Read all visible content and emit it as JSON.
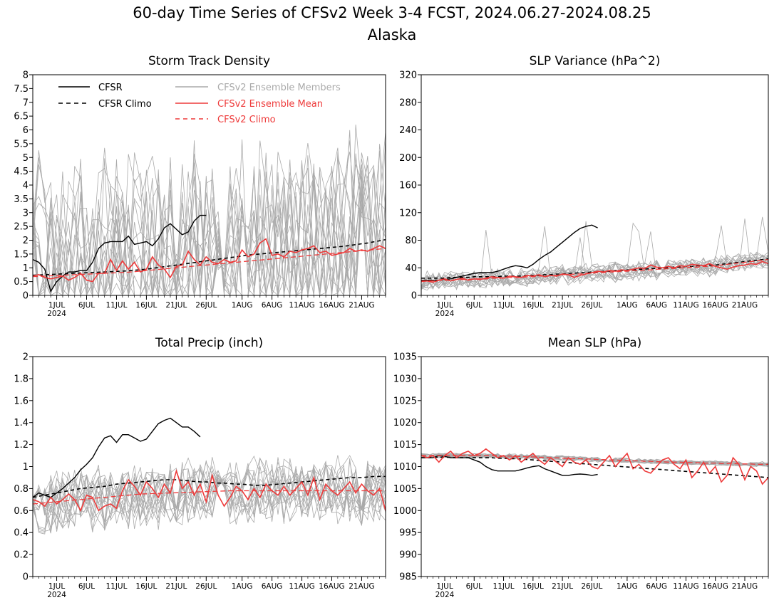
{
  "title": "60-day Time Series of CFSv2 Week 3-4 FCST, 2024.06.27-2024.08.25",
  "subtitle": "Alaska",
  "colors": {
    "cfsr": "#000000",
    "cfsv2_members": "#aaaaaa",
    "cfsv2_mean": "#ee3a3a",
    "cfsv2_climo": "#ee3a3a",
    "cfsr_climo": "#000000"
  },
  "legend": {
    "cfsr": "CFSR",
    "cfsr_climo": "CFSR Climo",
    "members": "CFSv2 Ensemble Members",
    "mean": "CFSv2 Ensemble Mean",
    "cfsv2_climo": "CFSv2 Climo"
  },
  "x_ticks": {
    "day_index": [
      4,
      9,
      14,
      19,
      24,
      29,
      35,
      40,
      45,
      50,
      55
    ],
    "labels": [
      "1JUL",
      "6JUL",
      "11JUL",
      "16JUL",
      "21JUL",
      "26JUL",
      "1AUG",
      "6AUG",
      "11AUG",
      "16AUG",
      "21AUG"
    ],
    "year_label": "2024"
  },
  "chart_data": [
    {
      "type": "line",
      "title": "Storm Track Density",
      "ylim": [
        0,
        8
      ],
      "yticks": [
        "0",
        "0.5",
        "1",
        "1.5",
        "2",
        "2.5",
        "3",
        "3.5",
        "4",
        "4.5",
        "5",
        "5.5",
        "6",
        "6.5",
        "7",
        "7.5",
        "8"
      ],
      "x": "days 0-59 (2024-06-27 to 2024-08-25)",
      "series": [
        {
          "name": "CFSR",
          "values": [
            1.3,
            1.2,
            0.95,
            0.15,
            0.5,
            0.7,
            0.85,
            0.85,
            0.9,
            0.9,
            1.2,
            1.7,
            1.9,
            1.95,
            1.95,
            1.95,
            2.15,
            1.85,
            1.9,
            1.95,
            1.8,
            2.05,
            2.45,
            2.6,
            2.4,
            2.2,
            2.3,
            2.7,
            2.9,
            2.9
          ]
        },
        {
          "name": "CFSR Climo",
          "values": [
            0.73,
            0.74,
            0.75,
            0.76,
            0.77,
            0.78,
            0.79,
            0.8,
            0.81,
            0.82,
            0.83,
            0.84,
            0.85,
            0.86,
            0.87,
            0.88,
            0.89,
            0.91,
            0.93,
            0.95,
            0.98,
            1.01,
            1.04,
            1.07,
            1.1,
            1.13,
            1.16,
            1.19,
            1.22,
            1.25,
            1.28,
            1.31,
            1.34,
            1.37,
            1.4,
            1.43,
            1.46,
            1.48,
            1.5,
            1.52,
            1.54,
            1.56,
            1.58,
            1.6,
            1.62,
            1.64,
            1.66,
            1.68,
            1.7,
            1.72,
            1.74,
            1.76,
            1.78,
            1.81,
            1.84,
            1.87,
            1.9,
            1.94,
            1.98,
            2.02
          ]
        },
        {
          "name": "CFSv2 Ensemble Mean",
          "values": [
            0.7,
            0.75,
            0.65,
            0.6,
            0.65,
            0.7,
            0.55,
            0.65,
            0.8,
            0.55,
            0.5,
            0.8,
            0.8,
            1.3,
            0.9,
            1.25,
            0.95,
            1.2,
            0.85,
            0.95,
            1.4,
            1.1,
            0.95,
            0.65,
            1.05,
            1.1,
            1.6,
            1.3,
            1.1,
            1.4,
            1.2,
            1.15,
            1.3,
            1.2,
            1.25,
            1.65,
            1.4,
            1.5,
            1.9,
            2.05,
            1.45,
            1.5,
            1.4,
            1.6,
            1.55,
            1.65,
            1.7,
            1.8,
            1.55,
            1.6,
            1.45,
            1.5,
            1.55,
            1.7,
            1.6,
            1.65,
            1.6,
            1.7,
            1.8,
            1.7
          ]
        },
        {
          "name": "CFSv2 Climo",
          "values": [
            0.68,
            0.69,
            0.7,
            0.71,
            0.72,
            0.73,
            0.74,
            0.75,
            0.76,
            0.77,
            0.78,
            0.79,
            0.8,
            0.81,
            0.82,
            0.83,
            0.84,
            0.86,
            0.88,
            0.9,
            0.92,
            0.94,
            0.96,
            0.98,
            1.0,
            1.02,
            1.04,
            1.06,
            1.08,
            1.1,
            1.12,
            1.14,
            1.16,
            1.18,
            1.2,
            1.22,
            1.24,
            1.26,
            1.28,
            1.3,
            1.32,
            1.34,
            1.36,
            1.38,
            1.4,
            1.42,
            1.44,
            1.46,
            1.48,
            1.5,
            1.52,
            1.54,
            1.56,
            1.58,
            1.6,
            1.62,
            1.64,
            1.66,
            1.68,
            1.7
          ]
        }
      ]
    },
    {
      "type": "line",
      "title": "SLP Variance (hPa^2)",
      "ylim": [
        0,
        320
      ],
      "yticks": [
        "0",
        "40",
        "80",
        "120",
        "160",
        "200",
        "240",
        "280",
        "320"
      ],
      "x": "days 0-59 (2024-06-27 to 2024-08-25)",
      "series": [
        {
          "name": "CFSR",
          "values": [
            22,
            22,
            22,
            22,
            23,
            24,
            26,
            28,
            30,
            32,
            33,
            33,
            33,
            35,
            38,
            41,
            43,
            42,
            40,
            45,
            52,
            58,
            63,
            70,
            77,
            84,
            91,
            97,
            100,
            102,
            98
          ]
        },
        {
          "name": "CFSR Climo",
          "values": [
            25,
            25,
            25,
            25,
            25,
            26,
            26,
            26,
            26,
            27,
            27,
            27,
            27,
            27,
            28,
            28,
            28,
            28,
            29,
            29,
            29,
            30,
            30,
            31,
            31,
            32,
            32,
            33,
            33,
            34,
            34,
            35,
            35,
            36,
            36,
            37,
            37,
            38,
            38,
            39,
            39,
            40,
            40,
            41,
            41,
            42,
            42,
            43,
            43,
            44,
            44,
            45,
            46,
            47,
            48,
            49,
            50,
            51,
            52,
            53
          ]
        },
        {
          "name": "CFSv2 Ensemble Mean",
          "values": [
            20,
            21,
            19,
            22,
            24,
            21,
            23,
            25,
            22,
            24,
            23,
            25,
            27,
            26,
            25,
            28,
            27,
            26,
            29,
            28,
            30,
            27,
            29,
            28,
            31,
            30,
            26,
            29,
            31,
            33,
            35,
            34,
            36,
            35,
            37,
            36,
            38,
            40,
            39,
            44,
            41,
            40,
            42,
            40,
            43,
            42,
            45,
            44,
            43,
            46,
            42,
            40,
            38,
            41,
            43,
            44,
            46,
            45,
            49,
            46
          ]
        },
        {
          "name": "CFSv2 Climo",
          "values": [
            21,
            21,
            21,
            22,
            22,
            22,
            23,
            23,
            23,
            24,
            24,
            24,
            25,
            25,
            25,
            26,
            26,
            26,
            27,
            27,
            28,
            28,
            29,
            29,
            30,
            30,
            31,
            31,
            32,
            32,
            33,
            33,
            34,
            34,
            35,
            35,
            36,
            36,
            37,
            37,
            38,
            38,
            39,
            39,
            40,
            40,
            41,
            41,
            42,
            42,
            43,
            44,
            45,
            46,
            47,
            48,
            49,
            50,
            51,
            52
          ]
        }
      ]
    },
    {
      "type": "line",
      "title": "Total Precip (inch)",
      "ylim": [
        0,
        2
      ],
      "yticks": [
        "0",
        "0.2",
        "0.4",
        "0.6",
        "0.8",
        "1",
        "1.2",
        "1.4",
        "1.6",
        "1.8",
        "2"
      ],
      "x": "days 0-59 (2024-06-27 to 2024-08-25)",
      "series": [
        {
          "name": "CFSR",
          "values": [
            0.72,
            0.76,
            0.74,
            0.72,
            0.76,
            0.8,
            0.85,
            0.9,
            0.97,
            1.02,
            1.08,
            1.18,
            1.26,
            1.28,
            1.22,
            1.29,
            1.29,
            1.26,
            1.23,
            1.25,
            1.32,
            1.39,
            1.42,
            1.44,
            1.4,
            1.36,
            1.36,
            1.32,
            1.27
          ]
        },
        {
          "name": "CFSR Climo",
          "values": [
            0.72,
            0.73,
            0.74,
            0.75,
            0.76,
            0.77,
            0.78,
            0.79,
            0.8,
            0.805,
            0.81,
            0.815,
            0.82,
            0.83,
            0.84,
            0.845,
            0.85,
            0.855,
            0.86,
            0.865,
            0.87,
            0.875,
            0.88,
            0.88,
            0.88,
            0.875,
            0.87,
            0.865,
            0.86,
            0.86,
            0.855,
            0.85,
            0.85,
            0.845,
            0.84,
            0.84,
            0.835,
            0.83,
            0.83,
            0.83,
            0.835,
            0.84,
            0.845,
            0.85,
            0.855,
            0.86,
            0.865,
            0.87,
            0.875,
            0.88,
            0.885,
            0.89,
            0.895,
            0.9,
            0.9,
            0.9,
            0.905,
            0.91,
            0.91,
            0.91
          ]
        },
        {
          "name": "CFSv2 Ensemble Mean",
          "values": [
            0.7,
            0.68,
            0.64,
            0.72,
            0.66,
            0.7,
            0.75,
            0.7,
            0.6,
            0.74,
            0.72,
            0.6,
            0.64,
            0.66,
            0.62,
            0.78,
            0.88,
            0.82,
            0.74,
            0.86,
            0.8,
            0.72,
            0.84,
            0.76,
            0.96,
            0.8,
            0.86,
            0.74,
            0.84,
            0.68,
            0.92,
            0.74,
            0.64,
            0.72,
            0.82,
            0.78,
            0.7,
            0.8,
            0.72,
            0.84,
            0.78,
            0.74,
            0.82,
            0.74,
            0.8,
            0.86,
            0.74,
            0.9,
            0.7,
            0.84,
            0.78,
            0.74,
            0.8,
            0.86,
            0.76,
            0.84,
            0.78,
            0.74,
            0.8,
            0.6
          ]
        },
        {
          "name": "CFSv2 Climo",
          "values": [
            0.66,
            0.665,
            0.67,
            0.675,
            0.68,
            0.685,
            0.69,
            0.695,
            0.7,
            0.705,
            0.71,
            0.715,
            0.72,
            0.725,
            0.73,
            0.735,
            0.74,
            0.745,
            0.75,
            0.752,
            0.754,
            0.756,
            0.758,
            0.76,
            0.762,
            0.764,
            0.766,
            0.768,
            0.77,
            0.772,
            0.774,
            0.776,
            0.778,
            0.78,
            0.78,
            0.78,
            0.78,
            0.78,
            0.78,
            0.78,
            0.78,
            0.78,
            0.78,
            0.78,
            0.78,
            0.78,
            0.78,
            0.78,
            0.78,
            0.78,
            0.78,
            0.78,
            0.78,
            0.78,
            0.78,
            0.78,
            0.78,
            0.78,
            0.78,
            0.78
          ]
        }
      ]
    },
    {
      "type": "line",
      "title": "Mean SLP (hPa)",
      "ylim": [
        985,
        1035
      ],
      "yticks": [
        "985",
        "990",
        "995",
        "1000",
        "1005",
        "1010",
        "1015",
        "1020",
        "1025",
        "1030",
        "1035"
      ],
      "x": "days 0-59 (2024-06-27 to 2024-08-25)",
      "series": [
        {
          "name": "CFSR",
          "values": [
            1012,
            1012,
            1012,
            1012.5,
            1012.3,
            1012,
            1012,
            1012,
            1012,
            1011.5,
            1011,
            1010,
            1009.3,
            1009,
            1009,
            1009,
            1009,
            1009.3,
            1009.7,
            1010,
            1010.2,
            1009.5,
            1009,
            1008.5,
            1008,
            1008,
            1008.2,
            1008.3,
            1008.2,
            1008,
            1008.2
          ]
        },
        {
          "name": "CFSR Climo",
          "values": [
            1012,
            1012,
            1012.1,
            1012.1,
            1012.1,
            1012.1,
            1012,
            1012,
            1012,
            1012,
            1012,
            1012,
            1012,
            1011.9,
            1011.9,
            1011.8,
            1011.8,
            1011.7,
            1011.6,
            1011.5,
            1011.4,
            1011.3,
            1011.2,
            1011.1,
            1011,
            1010.9,
            1010.8,
            1010.7,
            1010.6,
            1010.5,
            1010.4,
            1010.3,
            1010.2,
            1010.1,
            1010,
            1009.9,
            1009.8,
            1009.7,
            1009.6,
            1009.5,
            1009.4,
            1009.3,
            1009.2,
            1009.1,
            1009,
            1008.9,
            1008.8,
            1008.7,
            1008.6,
            1008.5,
            1008.4,
            1008.3,
            1008.2,
            1008.1,
            1008,
            1007.9,
            1007.8,
            1007.7,
            1007.6,
            1007.5
          ]
        },
        {
          "name": "CFSv2 Ensemble Mean",
          "values": [
            1012.5,
            1012,
            1012.5,
            1011,
            1012.5,
            1013.5,
            1012,
            1013,
            1013.5,
            1012.5,
            1013,
            1014,
            1013,
            1012,
            1012.5,
            1011.5,
            1012.5,
            1011,
            1012,
            1013,
            1011.5,
            1010.5,
            1012,
            1011,
            1010,
            1012,
            1011,
            1010.5,
            1011.5,
            1010,
            1009.5,
            1011,
            1012.5,
            1010,
            1011.5,
            1013,
            1009.5,
            1010.5,
            1009,
            1008.5,
            1010,
            1011.5,
            1012,
            1010.5,
            1009.5,
            1011.5,
            1007.5,
            1009,
            1011,
            1008.5,
            1010,
            1006.5,
            1008,
            1012,
            1010.5,
            1007,
            1010,
            1009,
            1006,
            1007.5
          ]
        },
        {
          "name": "CFSv2 Climo",
          "values": [
            1012.5,
            1012.5,
            1012.5,
            1012.5,
            1012.5,
            1012.5,
            1012.5,
            1012.5,
            1012.5,
            1012.5,
            1012.5,
            1012.5,
            1012.5,
            1012.5,
            1012.4,
            1012.4,
            1012.3,
            1012.3,
            1012.2,
            1012.2,
            1012.1,
            1012.1,
            1012,
            1012,
            1011.9,
            1011.9,
            1011.8,
            1011.8,
            1011.7,
            1011.7,
            1011.6,
            1011.6,
            1011.5,
            1011.5,
            1011.4,
            1011.4,
            1011.3,
            1011.3,
            1011.2,
            1011.2,
            1011.1,
            1011.1,
            1011,
            1011,
            1011,
            1010.9,
            1010.9,
            1010.9,
            1010.8,
            1010.8,
            1010.8,
            1010.7,
            1010.7,
            1010.7,
            1010.6,
            1010.6,
            1010.6,
            1010.5,
            1010.5,
            1010.5
          ]
        }
      ]
    }
  ]
}
